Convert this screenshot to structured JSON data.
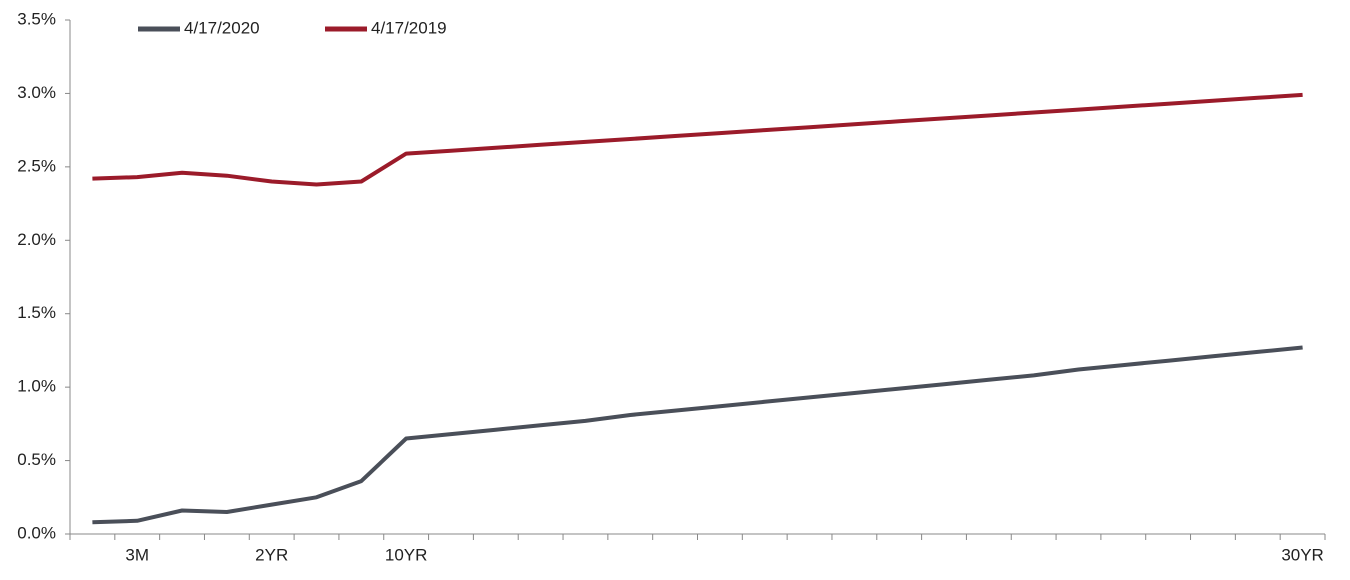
{
  "chart_data": {
    "type": "line",
    "categories": [
      null,
      "3M",
      null,
      null,
      "2YR",
      null,
      null,
      "10YR",
      null,
      null,
      null,
      null,
      null,
      null,
      null,
      null,
      null,
      null,
      null,
      null,
      null,
      null,
      null,
      null,
      null,
      null,
      null,
      "30YR"
    ],
    "series": [
      {
        "name": "4/17/2020",
        "color": "#4a4f59",
        "values": [
          0.08,
          0.09,
          0.16,
          0.15,
          0.2,
          0.25,
          0.36,
          0.65,
          0.68,
          0.71,
          0.74,
          0.77,
          0.81,
          0.84,
          0.87,
          0.9,
          0.93,
          0.96,
          0.99,
          1.02,
          1.05,
          1.08,
          1.12,
          1.15,
          1.18,
          1.21,
          1.24,
          1.27
        ]
      },
      {
        "name": "4/17/2019",
        "color": "#9b1b2a",
        "values": [
          2.42,
          2.43,
          2.46,
          2.44,
          2.4,
          2.38,
          2.4,
          2.59,
          2.61,
          2.63,
          2.65,
          2.67,
          2.69,
          2.71,
          2.73,
          2.75,
          2.77,
          2.79,
          2.81,
          2.83,
          2.85,
          2.87,
          2.89,
          2.91,
          2.93,
          2.95,
          2.97,
          2.99
        ]
      }
    ],
    "ylim": [
      0,
      3.5
    ],
    "yticks": [
      {
        "value": 0,
        "label": "0.0%"
      },
      {
        "value": 0.5,
        "label": "0.5%"
      },
      {
        "value": 1,
        "label": "1.0%"
      },
      {
        "value": 1.5,
        "label": "1.5%"
      },
      {
        "value": 2,
        "label": "2.0%"
      },
      {
        "value": 2.5,
        "label": "2.5%"
      },
      {
        "value": 3,
        "label": "3.0%"
      },
      {
        "value": 3.5,
        "label": "3.5%"
      }
    ],
    "legend": "top-left"
  }
}
